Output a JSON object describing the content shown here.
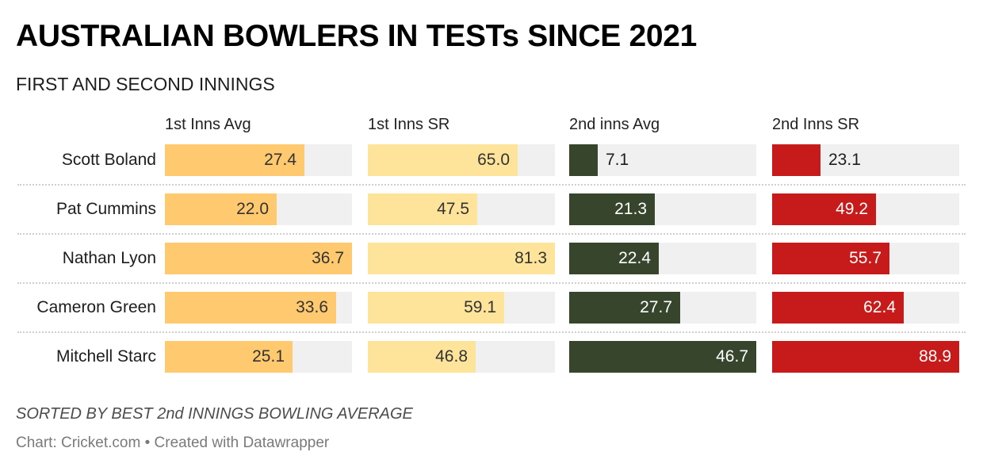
{
  "chart_data": {
    "type": "bar",
    "title": "AUSTRALIAN BOWLERS IN TESTs SINCE 2021",
    "subtitle": "FIRST AND SECOND INNINGS",
    "categories": [
      "Scott Boland",
      "Pat Cummins",
      "Nathan Lyon",
      "Cameron Green",
      "Mitchell Starc"
    ],
    "series": [
      {
        "name": "1st Inns Avg",
        "color": "#fec96f",
        "label_color": "#333333",
        "values": [
          27.4,
          22.0,
          36.7,
          33.6,
          25.1
        ]
      },
      {
        "name": "1st Inns SR",
        "color": "#fee49a",
        "label_color": "#333333",
        "values": [
          65.0,
          47.5,
          81.3,
          59.1,
          46.8
        ]
      },
      {
        "name": "2nd inns Avg",
        "color": "#36452c",
        "label_color": "#ffffff",
        "values": [
          7.1,
          21.3,
          22.4,
          27.7,
          46.7
        ]
      },
      {
        "name": "2nd Inns SR",
        "color": "#c71b1b",
        "label_color": "#ffffff",
        "values": [
          23.1,
          49.2,
          55.7,
          62.4,
          88.9
        ]
      }
    ],
    "track_color": "#f0f0f0",
    "scale": "each column scaled to its own maximum",
    "notes": "SORTED BY BEST 2nd INNINGS BOWLING AVERAGE",
    "source": "Chart: Cricket.com • Created with Datawrapper",
    "grid": false,
    "legend": "column headers at top"
  }
}
